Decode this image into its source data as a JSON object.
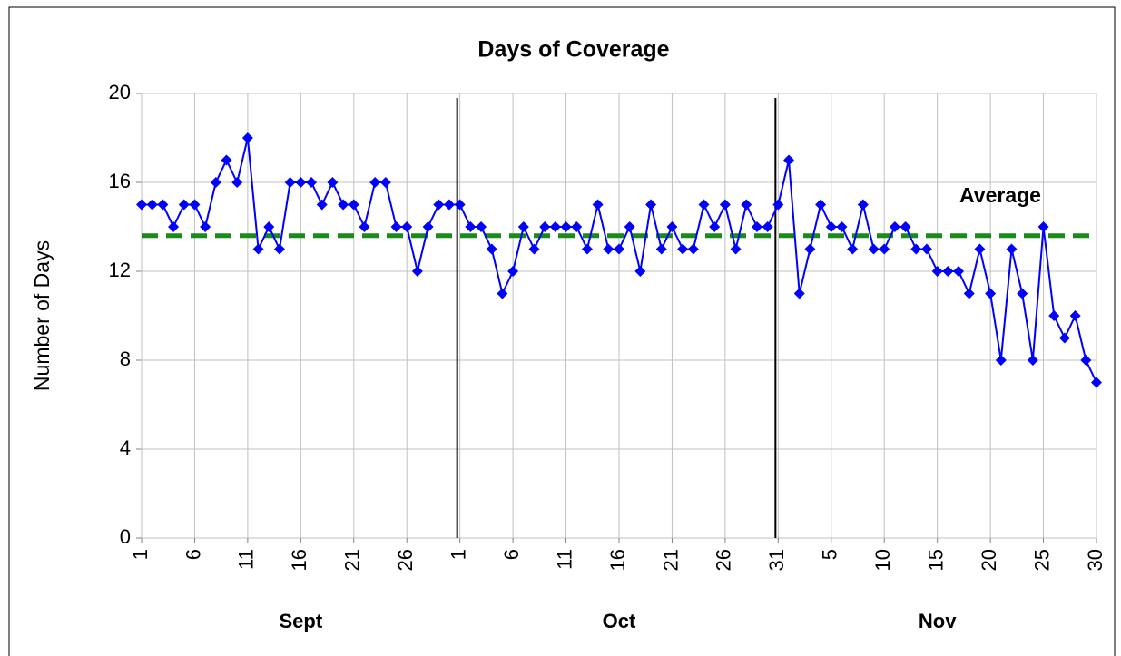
{
  "chart_data": {
    "type": "line",
    "title": "Days of Coverage",
    "ylabel": "Number of Days",
    "categories": [
      "1",
      null,
      null,
      null,
      null,
      "6",
      null,
      null,
      null,
      null,
      "11",
      null,
      null,
      null,
      null,
      "16",
      null,
      null,
      null,
      null,
      "21",
      null,
      null,
      null,
      null,
      "26",
      null,
      null,
      null,
      null,
      "1",
      null,
      null,
      null,
      null,
      "6",
      null,
      null,
      null,
      null,
      "11",
      null,
      null,
      null,
      null,
      "16",
      null,
      null,
      null,
      null,
      "21",
      null,
      null,
      null,
      null,
      "26",
      null,
      null,
      null,
      null,
      "31",
      null,
      null,
      null,
      null,
      "5",
      null,
      null,
      null,
      null,
      "10",
      null,
      null,
      null,
      null,
      "15",
      null,
      null,
      null,
      null,
      "20",
      null,
      null,
      null,
      null,
      "25",
      null,
      null,
      null,
      null,
      "30"
    ],
    "months": [
      "Sept",
      "Oct",
      "Nov"
    ],
    "series": [
      {
        "name": "Days of Coverage",
        "color": "#0000ff",
        "values": [
          15,
          15,
          15,
          14,
          15,
          15,
          14,
          16,
          17,
          16,
          18,
          13,
          14,
          13,
          16,
          16,
          16,
          15,
          16,
          15,
          15,
          14,
          16,
          16,
          14,
          14,
          12,
          14,
          15,
          15,
          15,
          14,
          14,
          13,
          11,
          12,
          14,
          13,
          14,
          14,
          14,
          14,
          13,
          15,
          13,
          13,
          14,
          12,
          15,
          13,
          14,
          13,
          13,
          15,
          14,
          15,
          13,
          15,
          14,
          14,
          15,
          17,
          11,
          13,
          15,
          14,
          14,
          13,
          15,
          13,
          13,
          14,
          14,
          13,
          13,
          12,
          12,
          12,
          11,
          13,
          11,
          8,
          13,
          11,
          8,
          14,
          10,
          9,
          10,
          8,
          7
        ]
      }
    ],
    "average": {
      "label": "Average",
      "value": 13.6,
      "color": "#1a8a1a",
      "label_color": "#6b8e23"
    },
    "ylim": [
      0,
      20
    ],
    "yticks": [
      0,
      4,
      8,
      12,
      16,
      20
    ],
    "grid": true
  }
}
